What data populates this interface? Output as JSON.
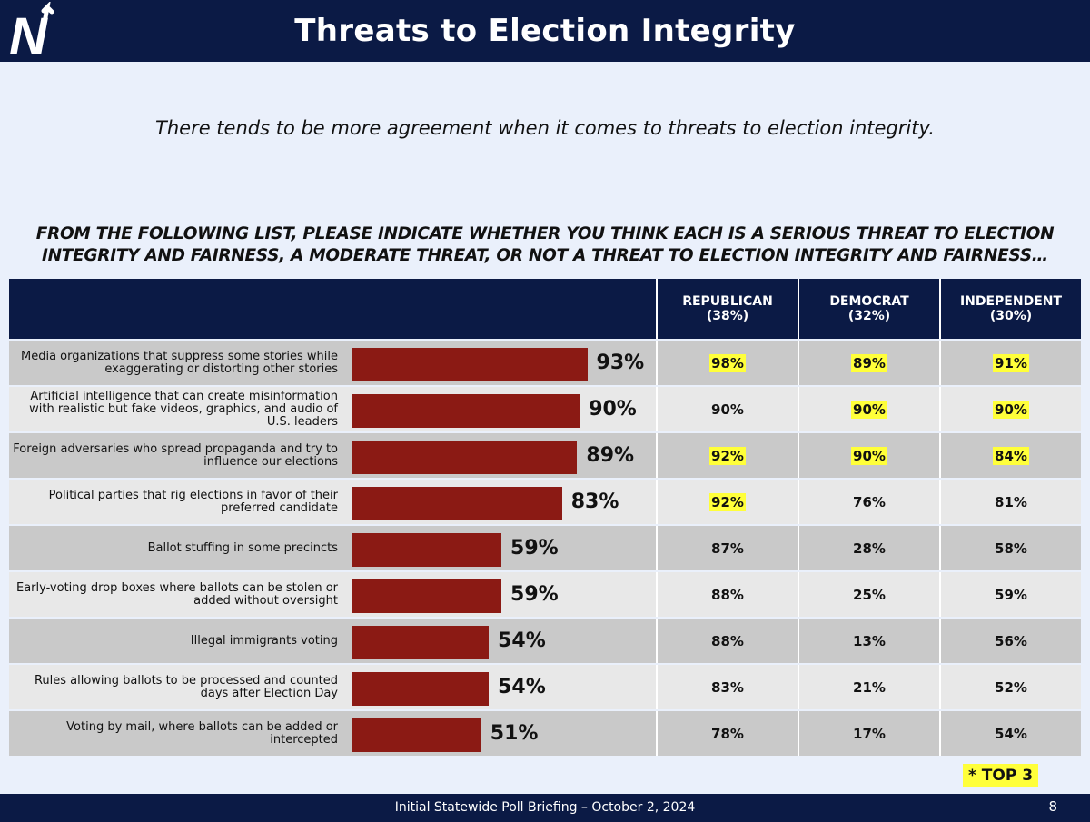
{
  "header": {
    "title": "Threats to Election Integrity",
    "logo_letter": "N"
  },
  "subtitle": "There tends to be more agreement when it comes to threats to election integrity.",
  "question": "FROM THE FOLLOWING LIST, PLEASE INDICATE WHETHER YOU THINK EACH IS A SERIOUS THREAT TO ELECTION INTEGRITY AND FAIRNESS, A MODERATE THREAT, OR NOT A THREAT TO ELECTION INTEGRITY AND FAIRNESS…",
  "columns": [
    {
      "name": "REPUBLICAN",
      "share": "(38%)"
    },
    {
      "name": "DEMOCRAT",
      "share": "(32%)"
    },
    {
      "name": "INDEPENDENT",
      "share": "(30%)"
    }
  ],
  "colors": {
    "bar": "#8b1a14",
    "header": "#0b1a45",
    "highlight": "#ffff3a"
  },
  "chart_data": {
    "type": "bar",
    "orientation": "horizontal",
    "xlim": [
      0,
      100
    ],
    "categories": [
      "Media organizations that suppress some stories while exaggerating or distorting other stories",
      "Artificial intelligence that can create misinformation with realistic but fake videos, graphics, and audio of U.S. leaders",
      "Foreign adversaries who spread propaganda and try to influence our elections",
      "Political parties that rig elections in favor of their preferred candidate",
      "Ballot stuffing in some precincts",
      "Early-voting drop boxes where ballots can be stolen or added without oversight",
      "Illegal immigrants voting",
      "Rules allowing ballots to be processed and counted days after Election Day",
      "Voting by mail, where ballots can be added or intercepted"
    ],
    "values": [
      93,
      90,
      89,
      83,
      59,
      59,
      54,
      54,
      51
    ],
    "value_labels": [
      "93%",
      "90%",
      "89%",
      "83%",
      "59%",
      "59%",
      "54%",
      "54%",
      "51%"
    ],
    "table": {
      "republican": [
        "98%",
        "90%",
        "92%",
        "92%",
        "87%",
        "88%",
        "88%",
        "83%",
        "78%"
      ],
      "democrat": [
        "89%",
        "90%",
        "90%",
        "76%",
        "28%",
        "25%",
        "13%",
        "21%",
        "17%"
      ],
      "independent": [
        "91%",
        "90%",
        "84%",
        "81%",
        "58%",
        "59%",
        "56%",
        "52%",
        "54%"
      ]
    },
    "top3_highlight": {
      "republican": [
        true,
        false,
        true,
        true,
        false,
        false,
        false,
        false,
        false
      ],
      "democrat": [
        true,
        true,
        true,
        false,
        false,
        false,
        false,
        false,
        false
      ],
      "independent": [
        true,
        true,
        true,
        false,
        false,
        false,
        false,
        false,
        false
      ]
    }
  },
  "legend_note": "* TOP 3",
  "footer": {
    "text": "Initial Statewide Poll Briefing – October 2, 2024",
    "page": "8"
  }
}
